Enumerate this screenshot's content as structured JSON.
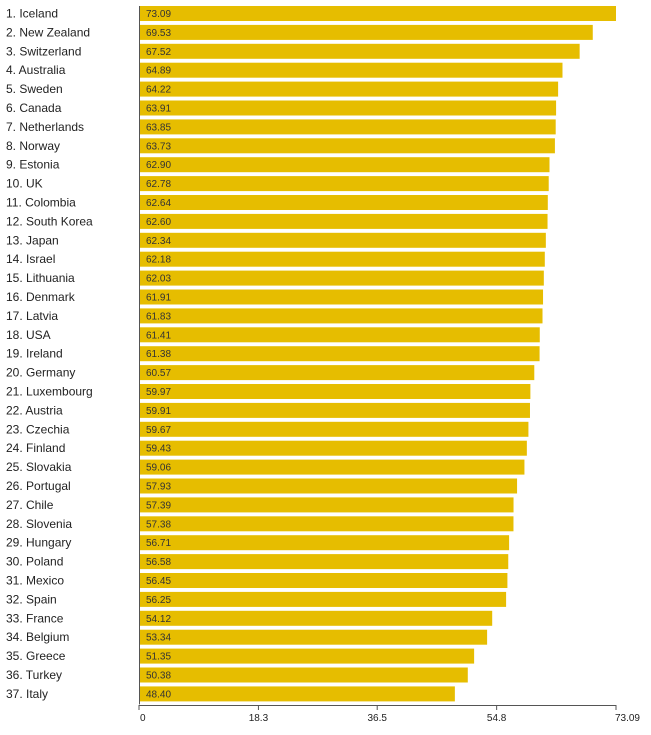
{
  "chart_data": {
    "type": "bar",
    "orientation": "horizontal",
    "title": "",
    "xlabel": "",
    "ylabel": "",
    "xlim": [
      0,
      73.09
    ],
    "x_ticks": [
      "0",
      "18.3",
      "36.5",
      "54.8",
      "73.09"
    ],
    "x_tick_values": [
      0,
      18.3,
      36.5,
      54.8,
      73.09
    ],
    "grid": false,
    "legend": "none",
    "bar_color": "#e6bd00",
    "categories": [
      "1. Iceland",
      "2. New Zealand",
      "3. Switzerland",
      "4. Australia",
      "5. Sweden",
      "6. Canada",
      "7. Netherlands",
      "8. Norway",
      "9. Estonia",
      "10. UK",
      "11. Colombia",
      "12. South Korea",
      "13. Japan",
      "14. Israel",
      "15. Lithuania",
      "16. Denmark",
      "17. Latvia",
      "18. USA",
      "19. Ireland",
      "20. Germany",
      "21. Luxembourg",
      "22. Austria",
      "23. Czechia",
      "24. Finland",
      "25. Slovakia",
      "26. Portugal",
      "27. Chile",
      "28. Slovenia",
      "29. Hungary",
      "30. Poland",
      "31. Mexico",
      "32. Spain",
      "33. France",
      "34. Belgium",
      "35. Greece",
      "36. Turkey",
      "37. Italy"
    ],
    "values": [
      73.09,
      69.53,
      67.52,
      64.89,
      64.22,
      63.91,
      63.85,
      63.73,
      62.9,
      62.78,
      62.64,
      62.6,
      62.34,
      62.18,
      62.03,
      61.91,
      61.83,
      61.41,
      61.38,
      60.57,
      59.97,
      59.91,
      59.67,
      59.43,
      59.06,
      57.93,
      57.39,
      57.38,
      56.71,
      56.58,
      56.45,
      56.25,
      54.12,
      53.34,
      51.35,
      50.38,
      48.4
    ],
    "value_labels": [
      "73.09",
      "69.53",
      "67.52",
      "64.89",
      "64.22",
      "63.91",
      "63.85",
      "63.73",
      "62.90",
      "62.78",
      "62.64",
      "62.60",
      "62.34",
      "62.18",
      "62.03",
      "61.91",
      "61.83",
      "61.41",
      "61.38",
      "60.57",
      "59.97",
      "59.91",
      "59.67",
      "59.43",
      "59.06",
      "57.93",
      "57.39",
      "57.38",
      "56.71",
      "56.58",
      "56.45",
      "56.25",
      "54.12",
      "53.34",
      "51.35",
      "50.38",
      "48.40"
    ]
  }
}
